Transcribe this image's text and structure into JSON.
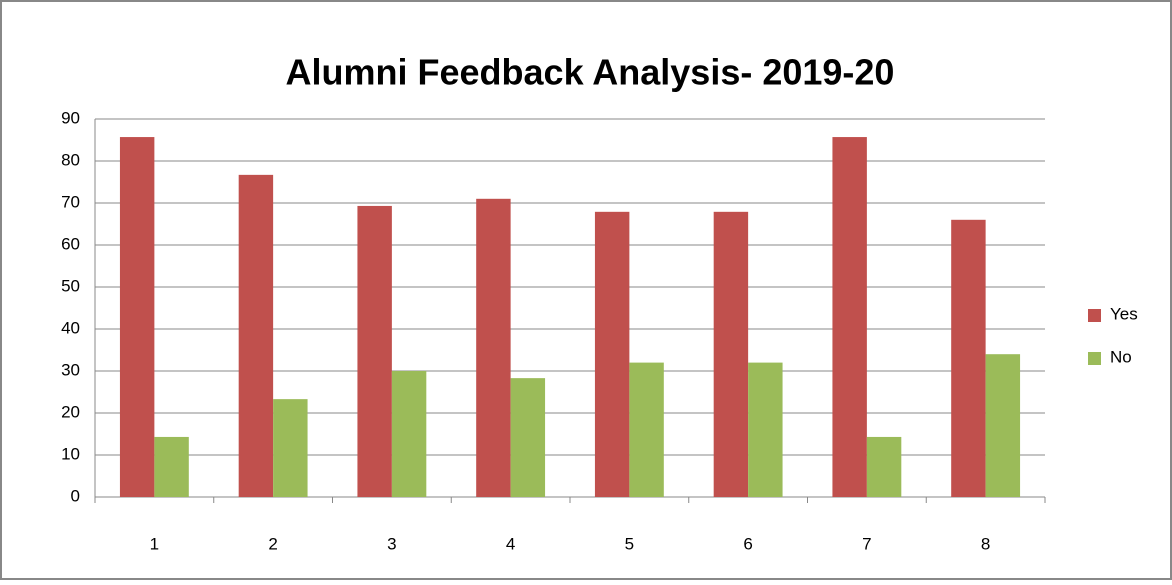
{
  "chart_data": {
    "type": "bar",
    "title": "Alumni  Feedback Analysis- 2019-20",
    "categories": [
      "1",
      "2",
      "3",
      "4",
      "5",
      "6",
      "7",
      "8"
    ],
    "series": [
      {
        "name": "Yes",
        "color": "#c0504d",
        "values": [
          85.7,
          76.7,
          69.3,
          71,
          67.9,
          67.9,
          85.7,
          66
        ]
      },
      {
        "name": "No",
        "color": "#9bbb59",
        "values": [
          14.3,
          23.3,
          30,
          28.3,
          32,
          32,
          14.3,
          34
        ]
      }
    ],
    "ylim": [
      0,
      90
    ],
    "yticks": [
      0,
      10,
      20,
      30,
      40,
      50,
      60,
      70,
      80,
      90
    ],
    "grid": true,
    "legend": "right"
  }
}
